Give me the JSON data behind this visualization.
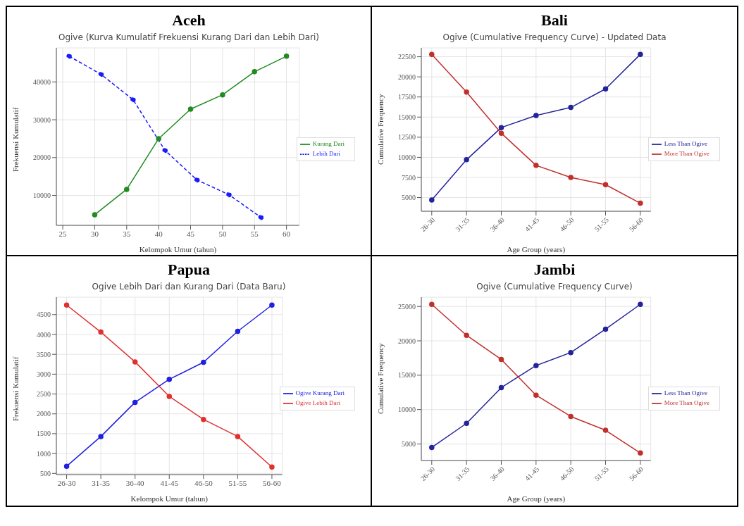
{
  "chart_data": [
    {
      "type": "line",
      "title": "Aceh",
      "subtitle": "Ogive (Kurva Kumulatif Frekuensi Kurang Dari dan Lebih Dari)",
      "xlabel": "Kelompok Umur (tahun)",
      "ylabel": "Frekuensi Kumulatif",
      "xlim": [
        24,
        62
      ],
      "xticks": [
        25,
        30,
        35,
        40,
        45,
        50,
        55,
        60
      ],
      "ylim": [
        2100,
        49000
      ],
      "yticks": [
        10000,
        20000,
        30000,
        40000
      ],
      "grid": true,
      "legend": "right",
      "marker": "circle",
      "series": [
        {
          "name": "Kurang Dari",
          "color": "#228b22",
          "line_style": "solid",
          "x": [
            30,
            35,
            40,
            45,
            50,
            55,
            60
          ],
          "values": [
            4900,
            11600,
            25000,
            32800,
            36600,
            42700,
            46800
          ]
        },
        {
          "name": "Lebih Dari",
          "color": "#1a1aff",
          "line_style": "dashed",
          "x": [
            26,
            31,
            36,
            41,
            46,
            51,
            56
          ],
          "values": [
            46800,
            42000,
            35300,
            21900,
            14100,
            10200,
            4200
          ]
        }
      ]
    },
    {
      "type": "line",
      "title": "Bali",
      "subtitle": "Ogive (Cumulative Frequency Curve) - Updated Data",
      "xlabel": "Age Group (years)",
      "ylabel": "Cumulative Frequency",
      "categories": [
        "26-30",
        "31-35",
        "36-40",
        "41-45",
        "46-50",
        "51-55",
        "56-60"
      ],
      "ylim": [
        3300,
        23600
      ],
      "yticks": [
        5000,
        7500,
        10000,
        12500,
        15000,
        17500,
        20000,
        22500
      ],
      "grid": true,
      "legend": "right",
      "marker": "circle",
      "series": [
        {
          "name": "Less Than Ogive",
          "color": "#23239a",
          "values": [
            4700,
            9700,
            13700,
            15200,
            16200,
            18500,
            22800
          ]
        },
        {
          "name": "More Than Ogive",
          "color": "#c0302c",
          "values": [
            22800,
            18100,
            13000,
            9000,
            7500,
            6600,
            4300
          ]
        }
      ]
    },
    {
      "type": "line",
      "title": "Papua",
      "subtitle": "Ogive Lebih Dari dan Kurang Dari (Data Baru)",
      "xlabel": "Kelompok Umur (tahun)",
      "ylabel": "Frekuensi Kumulatif",
      "categories": [
        "26-30",
        "31-35",
        "36-40",
        "41-45",
        "46-50",
        "51-55",
        "56-60"
      ],
      "ylim": [
        470,
        4940
      ],
      "yticks": [
        500,
        1000,
        1500,
        2000,
        2500,
        3000,
        3500,
        4000,
        4500
      ],
      "grid": true,
      "legend": "right",
      "marker": "circle",
      "series": [
        {
          "name": "Ogive Kurang Dari",
          "color": "#2020e0",
          "values": [
            680,
            1430,
            2290,
            2870,
            3300,
            4080,
            4740
          ]
        },
        {
          "name": "Ogive Lebih Dari",
          "color": "#e03030",
          "values": [
            4740,
            4060,
            3310,
            2440,
            1860,
            1430,
            660
          ]
        }
      ]
    },
    {
      "type": "line",
      "title": "Jambi",
      "subtitle": "Ogive (Cumulative Frequency Curve)",
      "xlabel": "Age Group (years)",
      "ylabel": "Cumulative Frequency",
      "categories": [
        "26-30",
        "31-35",
        "36-40",
        "41-45",
        "46-50",
        "51-55",
        "56-60"
      ],
      "ylim": [
        2600,
        26350
      ],
      "yticks": [
        5000,
        10000,
        15000,
        20000,
        25000
      ],
      "grid": true,
      "legend": "right",
      "marker": "circle",
      "series": [
        {
          "name": "Less Than Ogive",
          "color": "#23239a",
          "values": [
            4500,
            8000,
            13200,
            16400,
            18300,
            21700,
            25300
          ]
        },
        {
          "name": "More Than Ogive",
          "color": "#c0302c",
          "values": [
            25300,
            20800,
            17300,
            12100,
            9000,
            7000,
            3700
          ]
        }
      ]
    }
  ]
}
